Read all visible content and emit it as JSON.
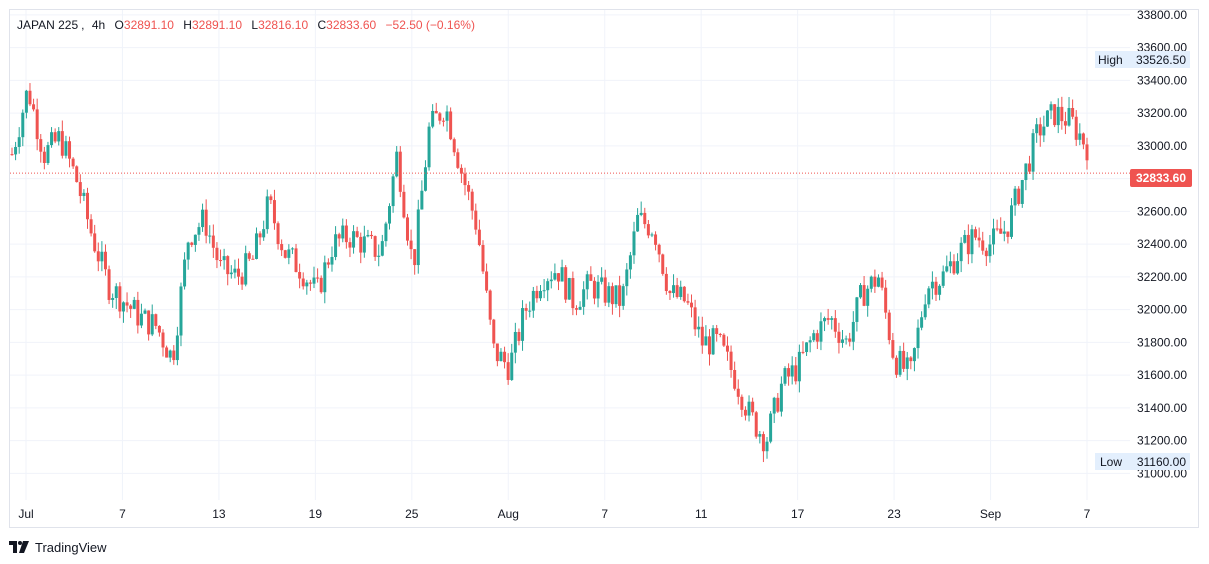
{
  "header": {
    "symbol": "JAPAN 225",
    "interval": "4h",
    "open_label": "O",
    "open": "32891.10",
    "high_label": "H",
    "high": "32891.10",
    "low_label": "L",
    "low": "32816.10",
    "close_label": "C",
    "close": "32833.60",
    "change": "−52.50 (−0.16%)"
  },
  "badges": {
    "high_label": "High",
    "high_value": "33526.50",
    "low_label": "Low",
    "low_value": "31160.00",
    "last_value": "32833.60"
  },
  "brand": {
    "name": "TradingView"
  },
  "colors": {
    "up": "#26a69a",
    "down": "#ef5350",
    "grid": "#f0f3fa",
    "text": "#131722",
    "badge_bg": "#e3effd",
    "last_line": "#ef5350"
  },
  "chart_data": {
    "type": "candlestick",
    "y_ticks": [
      "31000.00",
      "31200.00",
      "31400.00",
      "31600.00",
      "31800.00",
      "32000.00",
      "32200.00",
      "32400.00",
      "32600.00",
      "32800.00",
      "33000.00",
      "33200.00",
      "33400.00",
      "33600.00",
      "33800.00"
    ],
    "ylim": [
      30850,
      33830
    ],
    "x_ticks": [
      "Jul",
      "7",
      "13",
      "19",
      "25",
      "Aug",
      "7",
      "11",
      "17",
      "23",
      "Sep",
      "7"
    ],
    "grid": true,
    "close_series": [
      32950,
      33350,
      32950,
      33050,
      32800,
      32450,
      32150,
      32050,
      31950,
      31900,
      31700,
      32450,
      32550,
      32250,
      32200,
      32300,
      32650,
      32350,
      32250,
      32100,
      32400,
      32450,
      32400,
      32350,
      32950,
      32250,
      33100,
      33250,
      32850,
      32500,
      31750,
      31650,
      32000,
      32200,
      32250,
      32050,
      32150,
      32100,
      32050,
      32550,
      32500,
      32100,
      32050,
      31800,
      31800,
      31600,
      31350,
      31200,
      31550,
      31650,
      31850,
      31950,
      31800,
      32100,
      32200,
      31700,
      31600,
      32150,
      32200,
      32350,
      32450,
      32400,
      32500,
      32800,
      33100,
      33200,
      33150,
      33000
    ]
  }
}
